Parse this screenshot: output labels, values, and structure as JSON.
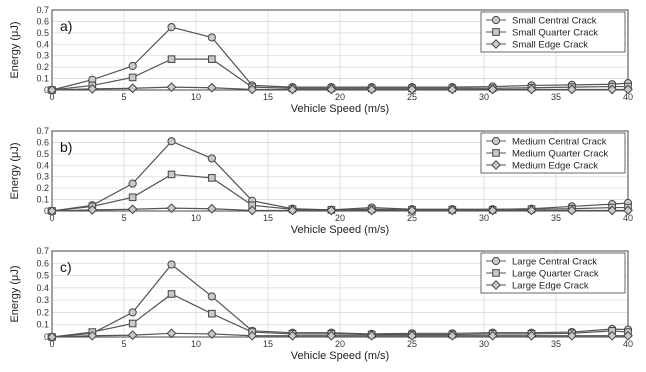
{
  "chart_data": [
    {
      "type": "line",
      "panel_label": "a)",
      "xlabel": "Vehicle Speed (m/s)",
      "ylabel": "Energy (μJ)",
      "xlim": [
        0,
        40
      ],
      "ylim": [
        0,
        0.7
      ],
      "xticks": [
        0,
        5,
        10,
        15,
        20,
        25,
        30,
        35,
        40
      ],
      "yticks": [
        0,
        0.1,
        0.2,
        0.3,
        0.4,
        0.5,
        0.6,
        0.7
      ],
      "grid": true,
      "legend_position": "top-right",
      "x": [
        0,
        2.8,
        5.6,
        8.3,
        11.1,
        13.9,
        16.7,
        19.4,
        22.2,
        25,
        27.8,
        30.6,
        33.3,
        36.1,
        38.9,
        40
      ],
      "series": [
        {
          "name": "Small Central Crack",
          "marker": "circle",
          "values": [
            0,
            0.09,
            0.21,
            0.55,
            0.46,
            0.04,
            0.025,
            0.025,
            0.025,
            0.025,
            0.025,
            0.03,
            0.04,
            0.045,
            0.05,
            0.06
          ]
        },
        {
          "name": "Small Quarter Crack",
          "marker": "square",
          "values": [
            0,
            0.04,
            0.11,
            0.27,
            0.27,
            0.025,
            0.015,
            0.015,
            0.015,
            0.015,
            0.015,
            0.015,
            0.02,
            0.025,
            0.03,
            0.03
          ]
        },
        {
          "name": "Small Edge Crack",
          "marker": "diamond",
          "values": [
            0,
            0.01,
            0.015,
            0.025,
            0.02,
            0.005,
            0.005,
            0.005,
            0.005,
            0.005,
            0.005,
            0.005,
            0.005,
            0.005,
            0.005,
            0.005
          ]
        }
      ]
    },
    {
      "type": "line",
      "panel_label": "b)",
      "xlabel": "Vehicle Speed (m/s)",
      "ylabel": "Energy (μJ)",
      "xlim": [
        0,
        40
      ],
      "ylim": [
        0,
        0.7
      ],
      "xticks": [
        0,
        5,
        10,
        15,
        20,
        25,
        30,
        35,
        40
      ],
      "yticks": [
        0,
        0.1,
        0.2,
        0.3,
        0.4,
        0.5,
        0.6,
        0.7
      ],
      "grid": true,
      "legend_position": "top-right",
      "x": [
        0,
        2.8,
        5.6,
        8.3,
        11.1,
        13.9,
        16.7,
        19.4,
        22.2,
        25,
        27.8,
        30.6,
        33.3,
        36.1,
        38.9,
        40
      ],
      "series": [
        {
          "name": "Medium Central Crack",
          "marker": "circle",
          "values": [
            0,
            0.05,
            0.24,
            0.61,
            0.46,
            0.09,
            0.02,
            0.01,
            0.03,
            0.015,
            0.015,
            0.015,
            0.02,
            0.04,
            0.06,
            0.07
          ]
        },
        {
          "name": "Medium Quarter Crack",
          "marker": "square",
          "values": [
            0,
            0.04,
            0.12,
            0.32,
            0.29,
            0.05,
            0.015,
            0.01,
            0.015,
            0.01,
            0.01,
            0.01,
            0.015,
            0.02,
            0.03,
            0.03
          ]
        },
        {
          "name": "Medium Edge Crack",
          "marker": "diamond",
          "values": [
            0,
            0.01,
            0.015,
            0.025,
            0.02,
            0.005,
            0.005,
            0.005,
            0.005,
            0.005,
            0.005,
            0.005,
            0.005,
            0.005,
            0.005,
            0.005
          ]
        }
      ]
    },
    {
      "type": "line",
      "panel_label": "c)",
      "xlabel": "Vehicle Speed (m/s)",
      "ylabel": "Energy (μJ)",
      "xlim": [
        0,
        40
      ],
      "ylim": [
        0,
        0.7
      ],
      "xticks": [
        0,
        5,
        10,
        15,
        20,
        25,
        30,
        35,
        40
      ],
      "yticks": [
        0,
        0.1,
        0.2,
        0.3,
        0.4,
        0.5,
        0.6,
        0.7
      ],
      "grid": true,
      "legend_position": "top-right",
      "x": [
        0,
        2.8,
        5.6,
        8.3,
        11.1,
        13.9,
        16.7,
        19.4,
        22.2,
        25,
        27.8,
        30.6,
        33.3,
        36.1,
        38.9,
        40
      ],
      "series": [
        {
          "name": "Large Central Crack",
          "marker": "circle",
          "values": [
            0,
            0.03,
            0.2,
            0.59,
            0.33,
            0.05,
            0.035,
            0.035,
            0.025,
            0.03,
            0.03,
            0.035,
            0.035,
            0.04,
            0.065,
            0.06
          ]
        },
        {
          "name": "Large Quarter Crack",
          "marker": "square",
          "values": [
            0,
            0.04,
            0.11,
            0.35,
            0.19,
            0.04,
            0.025,
            0.025,
            0.02,
            0.02,
            0.02,
            0.025,
            0.025,
            0.03,
            0.05,
            0.04
          ]
        },
        {
          "name": "Large Edge Crack",
          "marker": "diamond",
          "values": [
            0,
            0.01,
            0.015,
            0.03,
            0.025,
            0.01,
            0.01,
            0.01,
            0.01,
            0.01,
            0.01,
            0.01,
            0.01,
            0.01,
            0.01,
            0.01
          ]
        }
      ]
    }
  ]
}
